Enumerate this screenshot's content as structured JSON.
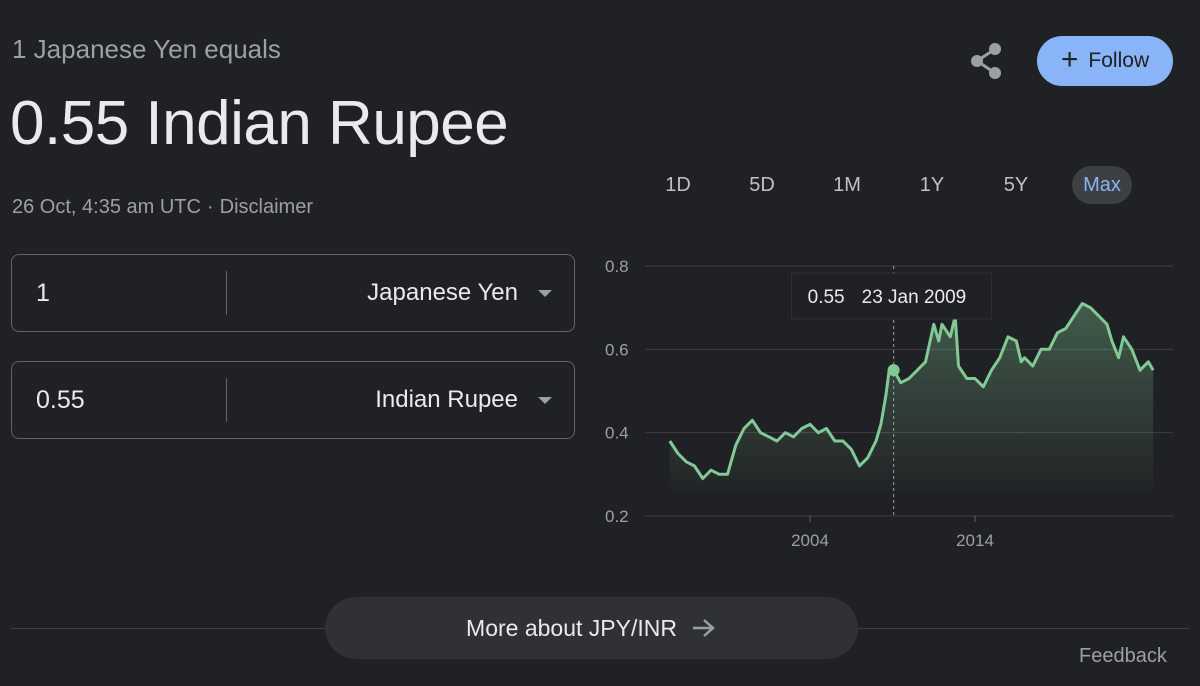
{
  "header": {
    "subtitle": "1 Japanese Yen equals",
    "headline": "0.55 Indian Rupee",
    "timestamp": "26 Oct, 4:35 am UTC",
    "separator": "·",
    "disclaimer": "Disclaimer"
  },
  "actions": {
    "share_icon": "share-icon",
    "follow_label": "Follow",
    "follow_icon": "plus-icon"
  },
  "converter": {
    "from": {
      "amount": "1",
      "currency": "Japanese Yen"
    },
    "to": {
      "amount": "0.55",
      "currency": "Indian Rupee"
    }
  },
  "range_tabs": [
    {
      "label": "1D",
      "active": false
    },
    {
      "label": "5D",
      "active": false
    },
    {
      "label": "1M",
      "active": false
    },
    {
      "label": "1Y",
      "active": false
    },
    {
      "label": "5Y",
      "active": false
    },
    {
      "label": "Max",
      "active": true
    }
  ],
  "chart_data": {
    "type": "area",
    "series": [
      {
        "x": [
          1995.5,
          1996.0,
          1996.5,
          1997.0,
          1997.5,
          1998.0,
          1998.5,
          1999.0,
          1999.5,
          2000.0,
          2000.5,
          2001.0,
          2001.5,
          2002.0,
          2002.5,
          2003.0,
          2003.5,
          2004.0,
          2004.5,
          2005.0,
          2005.5,
          2006.0,
          2006.5,
          2007.0,
          2007.5,
          2008.0,
          2008.3,
          2008.6,
          2008.8,
          2009.07,
          2009.5,
          2010.0,
          2010.5,
          2011.0,
          2011.5,
          2011.8,
          2012.0,
          2012.5,
          2012.8,
          2013.0,
          2013.5,
          2014.0,
          2014.5,
          2015.0,
          2015.5,
          2016.0,
          2016.5,
          2016.8,
          2017.0,
          2017.5,
          2018.0,
          2018.5,
          2019.0,
          2019.5,
          2020.0,
          2020.5,
          2021.0,
          2021.5,
          2022.0,
          2022.3,
          2022.7,
          2023.0,
          2023.5,
          2024.0,
          2024.5,
          2024.8
        ],
        "values": [
          0.38,
          0.35,
          0.33,
          0.32,
          0.29,
          0.31,
          0.3,
          0.3,
          0.37,
          0.41,
          0.43,
          0.4,
          0.39,
          0.38,
          0.4,
          0.39,
          0.41,
          0.42,
          0.4,
          0.41,
          0.38,
          0.38,
          0.36,
          0.32,
          0.34,
          0.38,
          0.42,
          0.49,
          0.55,
          0.55,
          0.52,
          0.53,
          0.55,
          0.57,
          0.66,
          0.62,
          0.66,
          0.63,
          0.68,
          0.56,
          0.53,
          0.53,
          0.51,
          0.55,
          0.58,
          0.63,
          0.62,
          0.57,
          0.58,
          0.56,
          0.6,
          0.6,
          0.64,
          0.65,
          0.68,
          0.71,
          0.7,
          0.68,
          0.66,
          0.62,
          0.58,
          0.63,
          0.6,
          0.55,
          0.57,
          0.55
        ]
      }
    ],
    "xticks": [
      "2004",
      "2014"
    ],
    "yticks": [
      "0.8",
      "0.6",
      "0.4",
      "0.2"
    ],
    "xlim": [
      1994,
      2026
    ],
    "ylim": [
      0.2,
      0.8
    ],
    "grid": true,
    "line_color": "#81c995",
    "tooltip": {
      "value": "0.55",
      "date": "23 Jan 2009",
      "x": 2009.07
    }
  },
  "more_button": {
    "label": "More about JPY/INR",
    "icon": "arrow-right-icon"
  },
  "footer": {
    "feedback": "Feedback"
  }
}
